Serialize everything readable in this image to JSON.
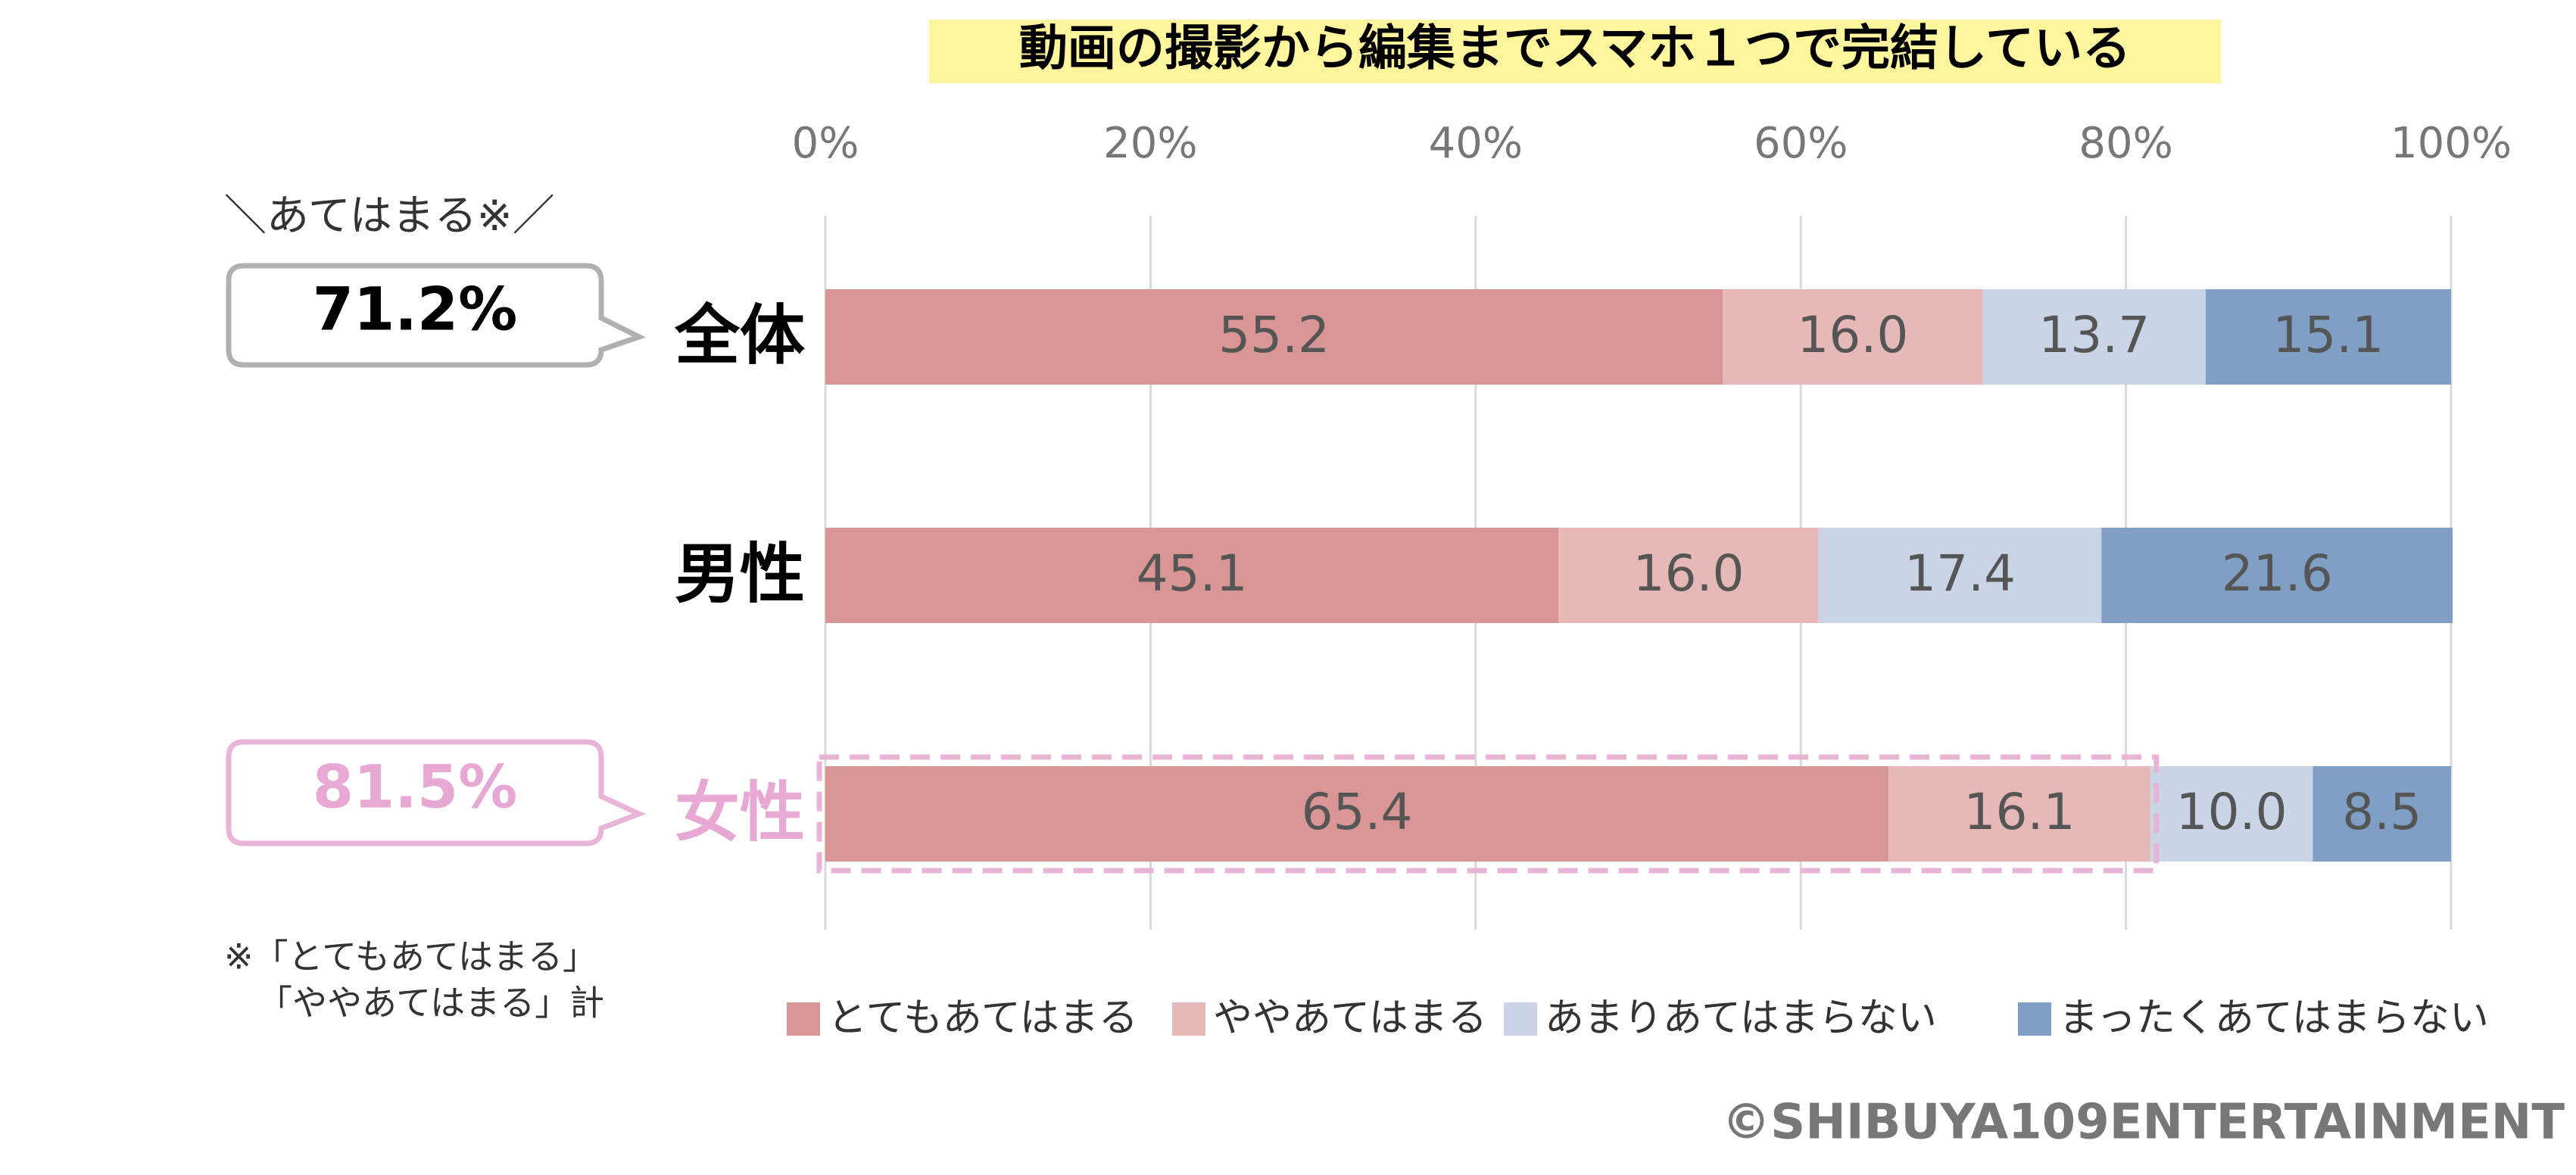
{
  "chart_data": {
    "type": "stacked-bar-horizontal",
    "title": "動画の撮影から編集までスマホ１つで完結している",
    "categories": [
      "全体",
      "男性",
      "女性"
    ],
    "series": [
      {
        "name": "とてもあてはまる",
        "color": "#d99694",
        "values": [
          55.2,
          45.1,
          65.4
        ],
        "value_labels": [
          "55.2",
          "45.1",
          "65.4"
        ]
      },
      {
        "name": "ややあてはまる",
        "color": "#e6b9b8",
        "values": [
          16.0,
          16.0,
          16.1
        ],
        "value_labels": [
          "16.0",
          "16.0",
          "16.1"
        ]
      },
      {
        "name": "あまりあてはまらない",
        "color": "#c9d5e6",
        "values": [
          13.7,
          17.4,
          10.0
        ],
        "value_labels": [
          "13.7",
          "17.4",
          "10.0"
        ]
      },
      {
        "name": "まったくあてはまらない",
        "color": "#7f9fc4",
        "values": [
          15.1,
          21.6,
          8.5
        ],
        "value_labels": [
          "15.1",
          "21.6",
          "8.5"
        ]
      }
    ],
    "xlim": [
      0,
      100
    ],
    "xticks": [
      {
        "value": 0,
        "label": "0%"
      },
      {
        "value": 20,
        "label": "20%"
      },
      {
        "value": 40,
        "label": "40%"
      },
      {
        "value": 60,
        "label": "60%"
      },
      {
        "value": 80,
        "label": "80%"
      },
      {
        "value": 100,
        "label": "100%"
      }
    ],
    "grid": true,
    "legend": "bottom",
    "annotations": [
      "＼あてはまる※／",
      "71.2%",
      "81.5%",
      "※「とてもあてはまる」",
      "「ややあてはまる」計"
    ],
    "source": "©SHIBUYA109ENTERTAINMENT"
  }
}
